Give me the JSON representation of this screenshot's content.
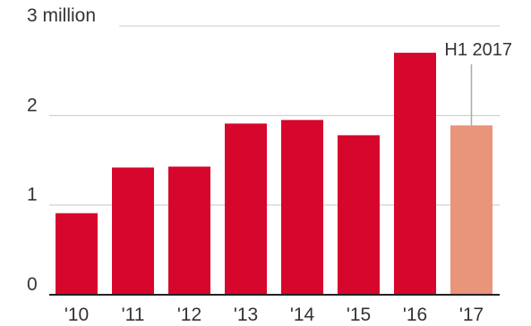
{
  "chart_data": {
    "type": "bar",
    "categories": [
      "'10",
      "'11",
      "'12",
      "'13",
      "'14",
      "'15",
      "'16",
      "'17"
    ],
    "values": [
      0.91,
      1.42,
      1.43,
      1.91,
      1.95,
      1.78,
      2.7,
      1.89
    ],
    "y_tick_labels": [
      "0",
      "1",
      "2",
      "3 million"
    ],
    "y_ticks": [
      0,
      1,
      2,
      3
    ],
    "ylim": [
      0,
      3
    ],
    "grid": true,
    "title": "",
    "xlabel": "",
    "ylabel": "",
    "annotation": {
      "text": "H1 2017",
      "category_index": 7
    },
    "colors": {
      "bar": "#d7062c",
      "highlight_bar": "#e8957c",
      "grid": "#c8c8c8",
      "baseline": "#222222",
      "annotation_line": "#aaaaaa",
      "text": "#333333"
    },
    "highlight_index": 7
  }
}
